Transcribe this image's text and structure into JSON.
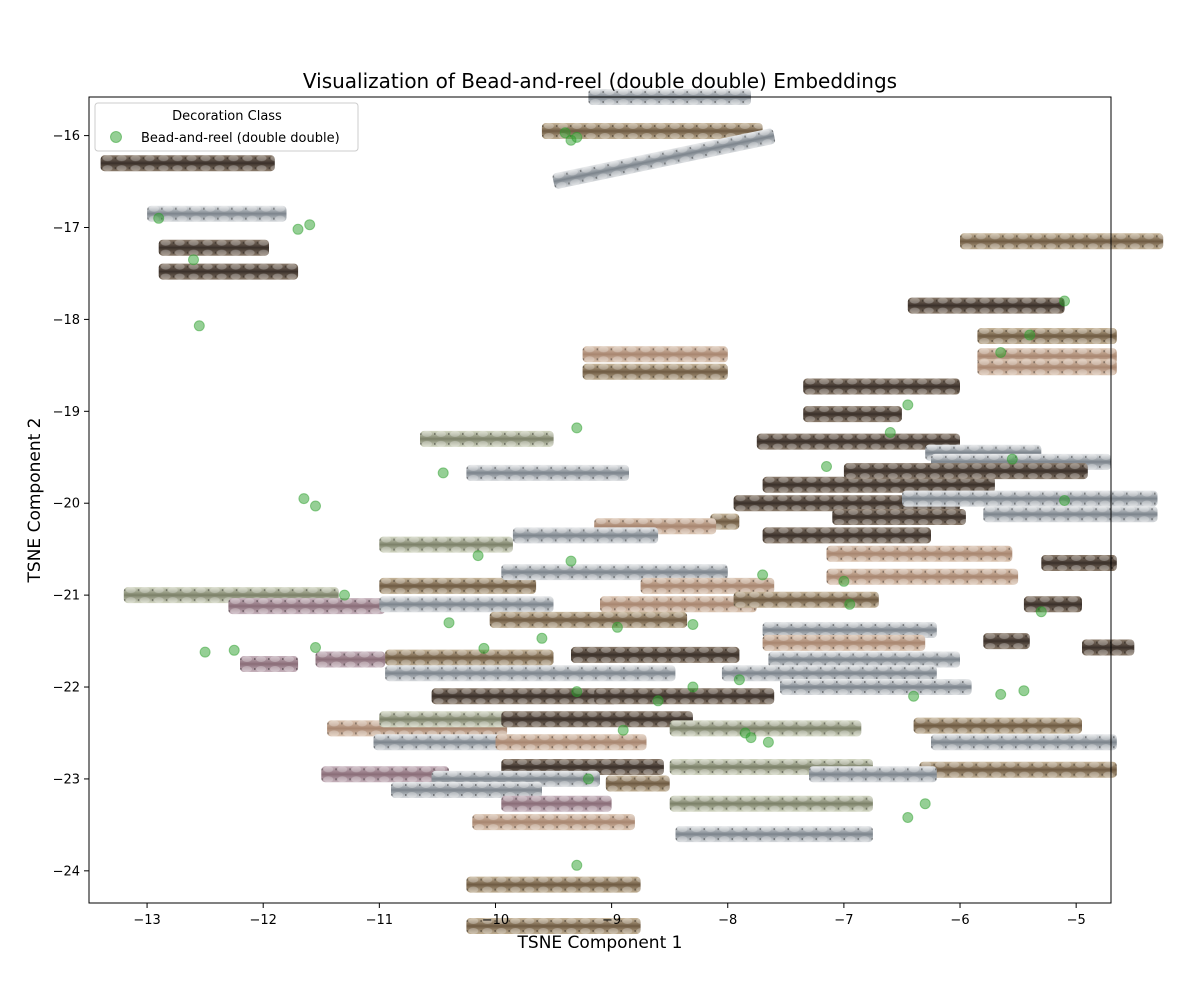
{
  "chart_data": {
    "type": "scatter",
    "title": "Visualization of Bead-and-reel (double double) Embeddings",
    "xlabel": "TSNE Component 1",
    "ylabel": "TSNE Component 2",
    "xlim": [
      -13.5,
      -4.7
    ],
    "ylim": [
      -24.35,
      -15.58
    ],
    "xticks": [
      -13,
      -12,
      -11,
      -10,
      -9,
      -8,
      -7,
      -6,
      -5
    ],
    "yticks": [
      -16,
      -17,
      -18,
      -19,
      -20,
      -21,
      -22,
      -23,
      -24
    ],
    "grid": false,
    "legend": {
      "title": "Decoration Class",
      "placement": "top-left"
    },
    "series": [
      {
        "name": "Bead-and-reel (double double)",
        "color": "#2ca02c",
        "points": [
          [
            -9.4,
            -15.97
          ],
          [
            -9.3,
            -16.02
          ],
          [
            -9.35,
            -16.05
          ],
          [
            -12.9,
            -16.9
          ],
          [
            -11.7,
            -17.02
          ],
          [
            -11.6,
            -16.97
          ],
          [
            -12.6,
            -17.35
          ],
          [
            -12.55,
            -18.07
          ],
          [
            -9.3,
            -19.18
          ],
          [
            -10.45,
            -19.67
          ],
          [
            -11.65,
            -19.95
          ],
          [
            -11.55,
            -20.03
          ],
          [
            -10.15,
            -20.57
          ],
          [
            -9.35,
            -20.63
          ],
          [
            -11.3,
            -21.0
          ],
          [
            -12.5,
            -21.62
          ],
          [
            -12.25,
            -21.6
          ],
          [
            -11.55,
            -21.57
          ],
          [
            -10.1,
            -21.58
          ],
          [
            -10.4,
            -21.3
          ],
          [
            -9.6,
            -21.47
          ],
          [
            -8.95,
            -21.35
          ],
          [
            -8.3,
            -21.32
          ],
          [
            -7.9,
            -21.92
          ],
          [
            -8.3,
            -22.0
          ],
          [
            -9.3,
            -22.05
          ],
          [
            -8.6,
            -22.15
          ],
          [
            -8.9,
            -22.47
          ],
          [
            -7.85,
            -22.5
          ],
          [
            -7.8,
            -22.55
          ],
          [
            -7.65,
            -22.6
          ],
          [
            -9.2,
            -23.0
          ],
          [
            -6.4,
            -22.1
          ],
          [
            -5.65,
            -22.08
          ],
          [
            -5.45,
            -22.04
          ],
          [
            -6.45,
            -23.42
          ],
          [
            -6.3,
            -23.27
          ],
          [
            -9.3,
            -23.94
          ],
          [
            -7.7,
            -20.78
          ],
          [
            -7.15,
            -19.6
          ],
          [
            -6.6,
            -19.23
          ],
          [
            -6.45,
            -18.93
          ],
          [
            -5.55,
            -19.52
          ],
          [
            -5.65,
            -18.36
          ],
          [
            -5.4,
            -18.17
          ],
          [
            -5.1,
            -17.8
          ],
          [
            -7.0,
            -20.85
          ],
          [
            -6.95,
            -21.1
          ],
          [
            -5.3,
            -21.18
          ],
          [
            -5.1,
            -19.97
          ]
        ]
      }
    ]
  }
}
